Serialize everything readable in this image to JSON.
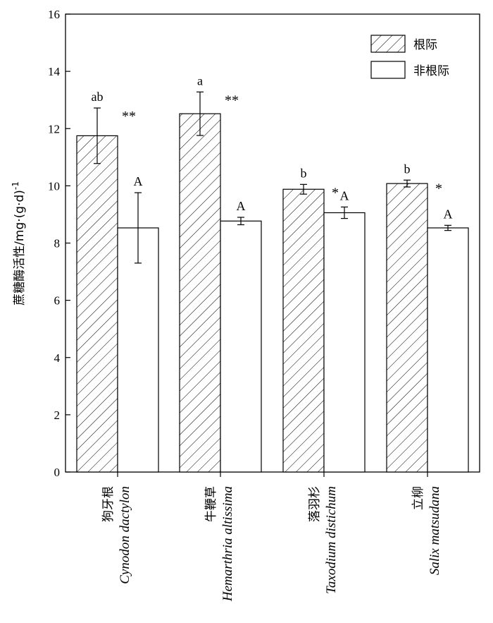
{
  "chart_data": {
    "type": "bar",
    "ylabel_main": "蔗糖酶活性/mg·(g·d)",
    "ylabel_sup": "-1",
    "ylim": [
      0,
      16
    ],
    "yticks": [
      "0",
      "2",
      "4",
      "6",
      "8",
      "10",
      "12",
      "14",
      "16"
    ],
    "categories": [
      {
        "cn": "狗牙根",
        "latin": "Cynodon dactylon"
      },
      {
        "cn": "牛鞭草",
        "latin": "Hemarthria altissima"
      },
      {
        "cn": "落羽杉",
        "latin": "Taxodium distichum"
      },
      {
        "cn": "立柳",
        "latin": "Salix matsudana"
      }
    ],
    "series": [
      {
        "name": "根际",
        "pattern": "hatched",
        "values": [
          11.75,
          12.52,
          9.88,
          10.08
        ],
        "errors": [
          0.97,
          0.76,
          0.17,
          0.12
        ],
        "letters": [
          "ab",
          "a",
          "b",
          "b"
        ]
      },
      {
        "name": "非根际",
        "pattern": "open",
        "values": [
          8.53,
          8.77,
          9.06,
          8.53
        ],
        "errors": [
          1.23,
          0.13,
          0.2,
          0.09
        ],
        "letters": [
          "A",
          "A",
          "A",
          "A"
        ]
      }
    ],
    "significance": [
      "**",
      "**",
      "*",
      "*"
    ],
    "legend": {
      "position": "top-right",
      "entries": [
        "根际",
        "非根际"
      ]
    },
    "grid": false
  }
}
